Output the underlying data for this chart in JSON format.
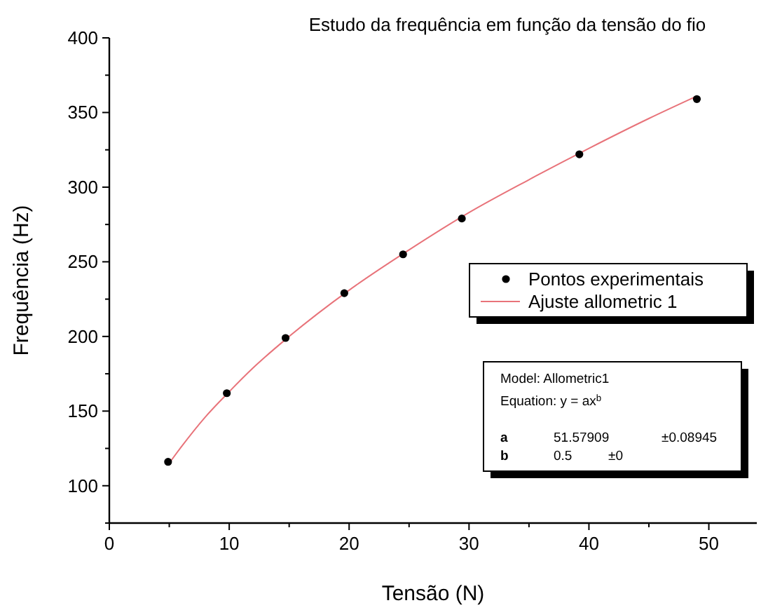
{
  "chart_data": {
    "type": "scatter",
    "title": "Estudo da frequência em função da tensão do fio",
    "xlabel": "Tensão (N)",
    "ylabel": "Frequência (Hz)",
    "xlim": [
      0,
      54
    ],
    "ylim": [
      75,
      400
    ],
    "xticks": [
      0,
      {
        "value": 5,
        "label": null
      },
      10,
      {
        "value": 15,
        "label": null
      },
      20,
      {
        "value": 25,
        "label": null
      },
      30,
      {
        "value": 35,
        "label": null
      },
      40,
      {
        "value": 45,
        "label": null
      },
      50
    ],
    "yticks": [
      {
        "value": 75,
        "label": null
      },
      100,
      {
        "value": 125,
        "label": null
      },
      150,
      {
        "value": 175,
        "label": null
      },
      200,
      {
        "value": 225,
        "label": null
      },
      250,
      {
        "value": 275,
        "label": null
      },
      300,
      {
        "value": 325,
        "label": null
      },
      350,
      {
        "value": 375,
        "label": null
      },
      400
    ],
    "series": [
      {
        "name": "Pontos experimentais",
        "color": "#000000",
        "marker": "circle",
        "x": [
          4.9,
          9.8,
          14.7,
          19.6,
          24.5,
          29.4,
          39.2,
          49
        ],
        "values": [
          116,
          162,
          199,
          229,
          255,
          279,
          322,
          359
        ]
      },
      {
        "name": "Ajuste allometric 1",
        "type": "line",
        "color": "#e8737a",
        "line_style": "solid",
        "x": [
          4.9,
          6,
          8,
          10,
          12,
          15,
          20,
          25,
          30,
          35,
          40,
          45,
          49
        ],
        "values": [
          114,
          126,
          146,
          163,
          179,
          200,
          231,
          258,
          283,
          305,
          326,
          346,
          361
        ]
      }
    ],
    "legend": "right",
    "grid": false,
    "annotations": [
      "Model: Allometric1",
      "Equation:  y = ax$^{b}$",
      "a",
      "51.57909",
      "±0.08945",
      "b",
      "0.5",
      "±0"
    ]
  }
}
